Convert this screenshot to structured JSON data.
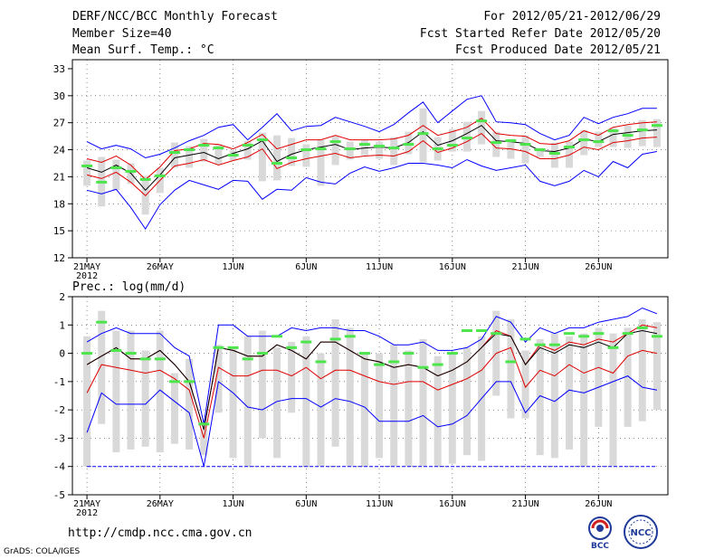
{
  "header": {
    "title": "DERF/NCC/BCC Monthly Forecast",
    "member_size": "Member Size=40",
    "variable": "Mean Surf. Temp.: °C",
    "period": "For 2012/05/21-2012/06/29",
    "started": "Fcst Started Refer Date 2012/05/20",
    "produced": "Fcst Produced Date 2012/05/21"
  },
  "footer": {
    "url": "http://cmdp.ncc.cma.gov.cn",
    "credit": "GrADS: COLA/IGES",
    "logo_bcc_text": "BCC",
    "logo_ncc_text": "NCC"
  },
  "colors": {
    "envelope": "#0000ff",
    "percentile": "#e00000",
    "mean": "#000000",
    "box": "#d9d9d9",
    "mode_marker": "#4ce64c"
  },
  "chart_data": [
    {
      "type": "box-line",
      "title": "Mean Surf. Temp.: °C",
      "ylim": [
        12,
        34
      ],
      "yticks": [
        12,
        15,
        18,
        21,
        24,
        27,
        30,
        33
      ],
      "x_ticks": [
        "21MAY",
        "26MAY",
        "1JUN",
        "6JUN",
        "11JUN",
        "16JUN",
        "21JUN",
        "26JUN"
      ],
      "x_year": "2012",
      "days": 40,
      "series": [
        {
          "name": "max",
          "values": [
            24.9,
            24.1,
            24.5,
            24.1,
            23.1,
            23.5,
            24.2,
            25.0,
            25.6,
            26.5,
            26.8,
            25.1,
            26.5,
            28.0,
            26.1,
            26.6,
            26.7,
            27.6,
            27.1,
            26.6,
            26.0,
            26.8,
            28.1,
            29.3,
            27.0,
            28.3,
            29.6,
            30.0,
            27.1,
            27.0,
            26.8,
            25.8,
            25.1,
            25.6,
            27.6,
            26.9,
            27.6,
            28.0,
            28.6,
            28.6
          ]
        },
        {
          "name": "p90",
          "values": [
            23.0,
            22.6,
            23.3,
            22.3,
            20.7,
            22.1,
            23.9,
            24.1,
            24.7,
            24.6,
            24.1,
            24.8,
            25.7,
            24.1,
            24.6,
            25.1,
            25.1,
            25.6,
            25.1,
            25.1,
            25.1,
            25.2,
            25.6,
            26.7,
            25.6,
            26.0,
            26.5,
            27.5,
            25.8,
            25.6,
            25.5,
            24.7,
            24.6,
            25.0,
            26.1,
            25.6,
            26.5,
            26.8,
            27.0,
            27.1
          ]
        },
        {
          "name": "mean",
          "values": [
            22.0,
            21.5,
            22.3,
            21.4,
            19.5,
            21.2,
            23.1,
            23.4,
            23.7,
            23.0,
            23.6,
            24.1,
            25.0,
            22.7,
            23.5,
            24.0,
            24.3,
            24.6,
            24.0,
            24.2,
            24.3,
            24.2,
            24.8,
            26.0,
            24.5,
            25.0,
            25.8,
            26.7,
            25.0,
            24.9,
            24.7,
            23.9,
            23.8,
            24.2,
            25.2,
            24.9,
            25.7,
            25.9,
            26.1,
            26.2
          ]
        },
        {
          "name": "p10",
          "values": [
            21.2,
            20.8,
            21.5,
            20.4,
            18.9,
            20.6,
            22.2,
            22.5,
            22.9,
            22.3,
            22.8,
            23.2,
            24.1,
            21.9,
            22.6,
            23.0,
            23.3,
            23.6,
            23.1,
            23.3,
            23.4,
            23.3,
            23.8,
            25.0,
            23.7,
            24.2,
            24.9,
            25.8,
            24.2,
            24.1,
            23.8,
            23.0,
            23.0,
            23.4,
            24.3,
            24.0,
            24.8,
            25.0,
            25.3,
            25.4
          ]
        },
        {
          "name": "min",
          "values": [
            19.5,
            19.1,
            19.6,
            17.6,
            15.2,
            17.9,
            19.5,
            20.6,
            20.1,
            19.6,
            20.6,
            20.5,
            18.5,
            19.6,
            19.5,
            20.9,
            20.4,
            20.2,
            21.4,
            22.1,
            21.6,
            22.0,
            22.5,
            22.5,
            22.3,
            22.0,
            22.9,
            22.2,
            21.7,
            22.0,
            22.3,
            20.5,
            20.0,
            20.5,
            21.7,
            21.0,
            22.7,
            22.0,
            23.5,
            23.8
          ]
        },
        {
          "name": "box_top",
          "values": [
            22.8,
            23.2,
            22.9,
            22.5,
            21.1,
            22.0,
            24.8,
            24.4,
            25.2,
            24.6,
            23.9,
            25.0,
            25.9,
            25.6,
            25.3,
            24.6,
            25.1,
            25.5,
            24.9,
            25.1,
            24.9,
            25.4,
            26.0,
            28.6,
            25.4,
            26.3,
            27.1,
            28.3,
            26.0,
            25.2,
            25.6,
            24.2,
            24.8,
            24.9,
            26.2,
            26.0,
            26.4,
            26.7,
            27.3,
            27.4
          ]
        },
        {
          "name": "box_bottom",
          "values": [
            20.0,
            17.7,
            19.5,
            20.2,
            16.8,
            19.2,
            22.0,
            22.0,
            22.7,
            22.4,
            22.8,
            22.9,
            20.5,
            20.6,
            22.2,
            22.1,
            20.0,
            22.3,
            22.9,
            23.4,
            23.0,
            22.3,
            23.5,
            22.6,
            22.8,
            23.8,
            23.8,
            24.6,
            23.2,
            23.0,
            22.5,
            23.2,
            22.0,
            22.0,
            23.4,
            24.3,
            24.3,
            24.2,
            24.4,
            24.3
          ]
        },
        {
          "name": "mode",
          "values": [
            22.2,
            20.4,
            22.0,
            21.6,
            20.7,
            21.1,
            23.7,
            24.0,
            24.5,
            24.2,
            23.4,
            24.5,
            25.1,
            22.5,
            23.1,
            24.0,
            24.1,
            24.9,
            24.1,
            24.6,
            24.4,
            24.2,
            24.6,
            25.8,
            24.1,
            24.5,
            25.3,
            27.2,
            24.8,
            25.0,
            24.6,
            24.0,
            23.6,
            24.3,
            25.1,
            24.9,
            26.1,
            25.6,
            26.2,
            26.7
          ]
        }
      ]
    },
    {
      "type": "box-line",
      "title": "Prec.: log(mm/d)",
      "ylim": [
        -5,
        2
      ],
      "yticks": [
        -5,
        -4,
        -3,
        -2,
        -1,
        0,
        1,
        2
      ],
      "x_ticks": [
        "21MAY",
        "26MAY",
        "1JUN",
        "6JUN",
        "11JUN",
        "16JUN",
        "21JUN",
        "26JUN"
      ],
      "x_year": "2012",
      "days": 40,
      "series": [
        {
          "name": "max",
          "values": [
            0.4,
            0.7,
            0.9,
            0.7,
            0.7,
            0.7,
            0.2,
            -0.1,
            -2.5,
            1.0,
            1.0,
            0.6,
            0.6,
            0.6,
            0.9,
            0.8,
            0.9,
            0.9,
            0.8,
            0.8,
            0.6,
            0.3,
            0.3,
            0.4,
            0.1,
            0.1,
            0.2,
            0.5,
            1.3,
            1.1,
            0.4,
            0.9,
            0.7,
            0.9,
            0.9,
            1.1,
            1.2,
            1.3,
            1.6,
            1.4
          ]
        },
        {
          "name": "p90",
          "values": [
            -0.4,
            -0.1,
            0.2,
            -0.2,
            -0.2,
            0.1,
            -0.4,
            -1.0,
            -2.7,
            0.2,
            0.1,
            -0.1,
            -0.1,
            0.3,
            0.1,
            -0.2,
            0.4,
            0.4,
            0.1,
            -0.2,
            -0.3,
            -0.5,
            -0.4,
            -0.5,
            -0.8,
            -0.6,
            -0.3,
            0.2,
            0.8,
            0.6,
            -0.4,
            0.3,
            0.1,
            0.4,
            0.3,
            0.5,
            0.4,
            0.7,
            1.0,
            0.9
          ]
        },
        {
          "name": "mean",
          "values": [
            -0.4,
            -0.1,
            0.2,
            -0.2,
            -0.2,
            0.1,
            -0.4,
            -1.0,
            -2.7,
            0.2,
            0.1,
            -0.1,
            -0.1,
            0.3,
            0.1,
            -0.2,
            0.4,
            0.4,
            0.1,
            -0.2,
            -0.3,
            -0.5,
            -0.4,
            -0.5,
            -0.8,
            -0.6,
            -0.3,
            0.2,
            0.7,
            0.6,
            -0.4,
            0.2,
            0.0,
            0.3,
            0.2,
            0.4,
            0.2,
            0.7,
            0.8,
            0.7
          ]
        },
        {
          "name": "p10",
          "values": [
            -1.4,
            -0.4,
            -0.5,
            -0.6,
            -0.7,
            -0.6,
            -0.9,
            -1.3,
            -3.0,
            -0.5,
            -0.8,
            -0.8,
            -0.6,
            -0.6,
            -0.8,
            -0.5,
            -0.9,
            -0.6,
            -0.6,
            -0.8,
            -1.0,
            -1.1,
            -1.0,
            -1.0,
            -1.3,
            -1.1,
            -0.9,
            -0.6,
            0.0,
            0.2,
            -1.2,
            -0.6,
            -0.8,
            -0.4,
            -0.7,
            -0.5,
            -0.7,
            -0.1,
            0.1,
            0.0
          ]
        },
        {
          "name": "min",
          "values": [
            -2.8,
            -1.4,
            -1.8,
            -1.8,
            -1.8,
            -1.3,
            -1.7,
            -2.1,
            -4.0,
            -1.0,
            -1.4,
            -1.9,
            -2.0,
            -1.7,
            -1.6,
            -1.6,
            -1.9,
            -1.6,
            -1.7,
            -1.9,
            -2.4,
            -2.4,
            -2.4,
            -2.2,
            -2.6,
            -2.5,
            -2.2,
            -1.6,
            -1.0,
            -1.0,
            -2.1,
            -1.5,
            -1.7,
            -1.3,
            -1.4,
            -1.2,
            -1.0,
            -0.8,
            -1.2,
            -1.3
          ]
        },
        {
          "name": "box_top",
          "values": [
            0.6,
            1.5,
            0.8,
            0.8,
            0.1,
            0.8,
            -0.7,
            -0.2,
            -2.7,
            0.3,
            0.2,
            0.6,
            0.8,
            0.2,
            0.4,
            0.6,
            0.0,
            1.2,
            0.9,
            0.0,
            0.0,
            0.3,
            0.1,
            0.5,
            -0.1,
            0.0,
            0.2,
            0.6,
            1.5,
            1.2,
            0.1,
            0.5,
            0.7,
            0.6,
            0.7,
            0.9,
            0.7,
            0.9,
            1.2,
            1.1
          ]
        },
        {
          "name": "box_bottom",
          "values": [
            -4.0,
            -2.5,
            -3.5,
            -3.4,
            -3.3,
            -3.5,
            -3.2,
            -3.4,
            -3.6,
            -2.1,
            -3.7,
            -4.0,
            -3.0,
            -3.7,
            -2.1,
            -4.0,
            -4.0,
            -3.3,
            -4.0,
            -4.0,
            -3.7,
            -4.0,
            -4.0,
            -4.0,
            -4.0,
            -3.9,
            -3.6,
            -3.8,
            -1.5,
            -2.3,
            -2.3,
            -3.6,
            -3.7,
            -3.4,
            -4.0,
            -2.6,
            -4.0,
            -2.6,
            -2.4,
            -2.0
          ]
        },
        {
          "name": "mode",
          "values": [
            0.0,
            1.1,
            0.1,
            0.0,
            -0.2,
            -0.2,
            -1.0,
            -1.0,
            -2.5,
            0.2,
            0.2,
            -0.2,
            0.0,
            0.6,
            0.2,
            0.4,
            -0.3,
            0.5,
            0.6,
            0.0,
            -0.4,
            -0.3,
            0.0,
            -0.5,
            -0.4,
            0.0,
            0.8,
            0.8,
            0.7,
            -0.3,
            0.5,
            0.3,
            0.3,
            0.7,
            0.6,
            0.7,
            0.2,
            0.7,
            0.9,
            0.6
          ]
        }
      ]
    }
  ]
}
